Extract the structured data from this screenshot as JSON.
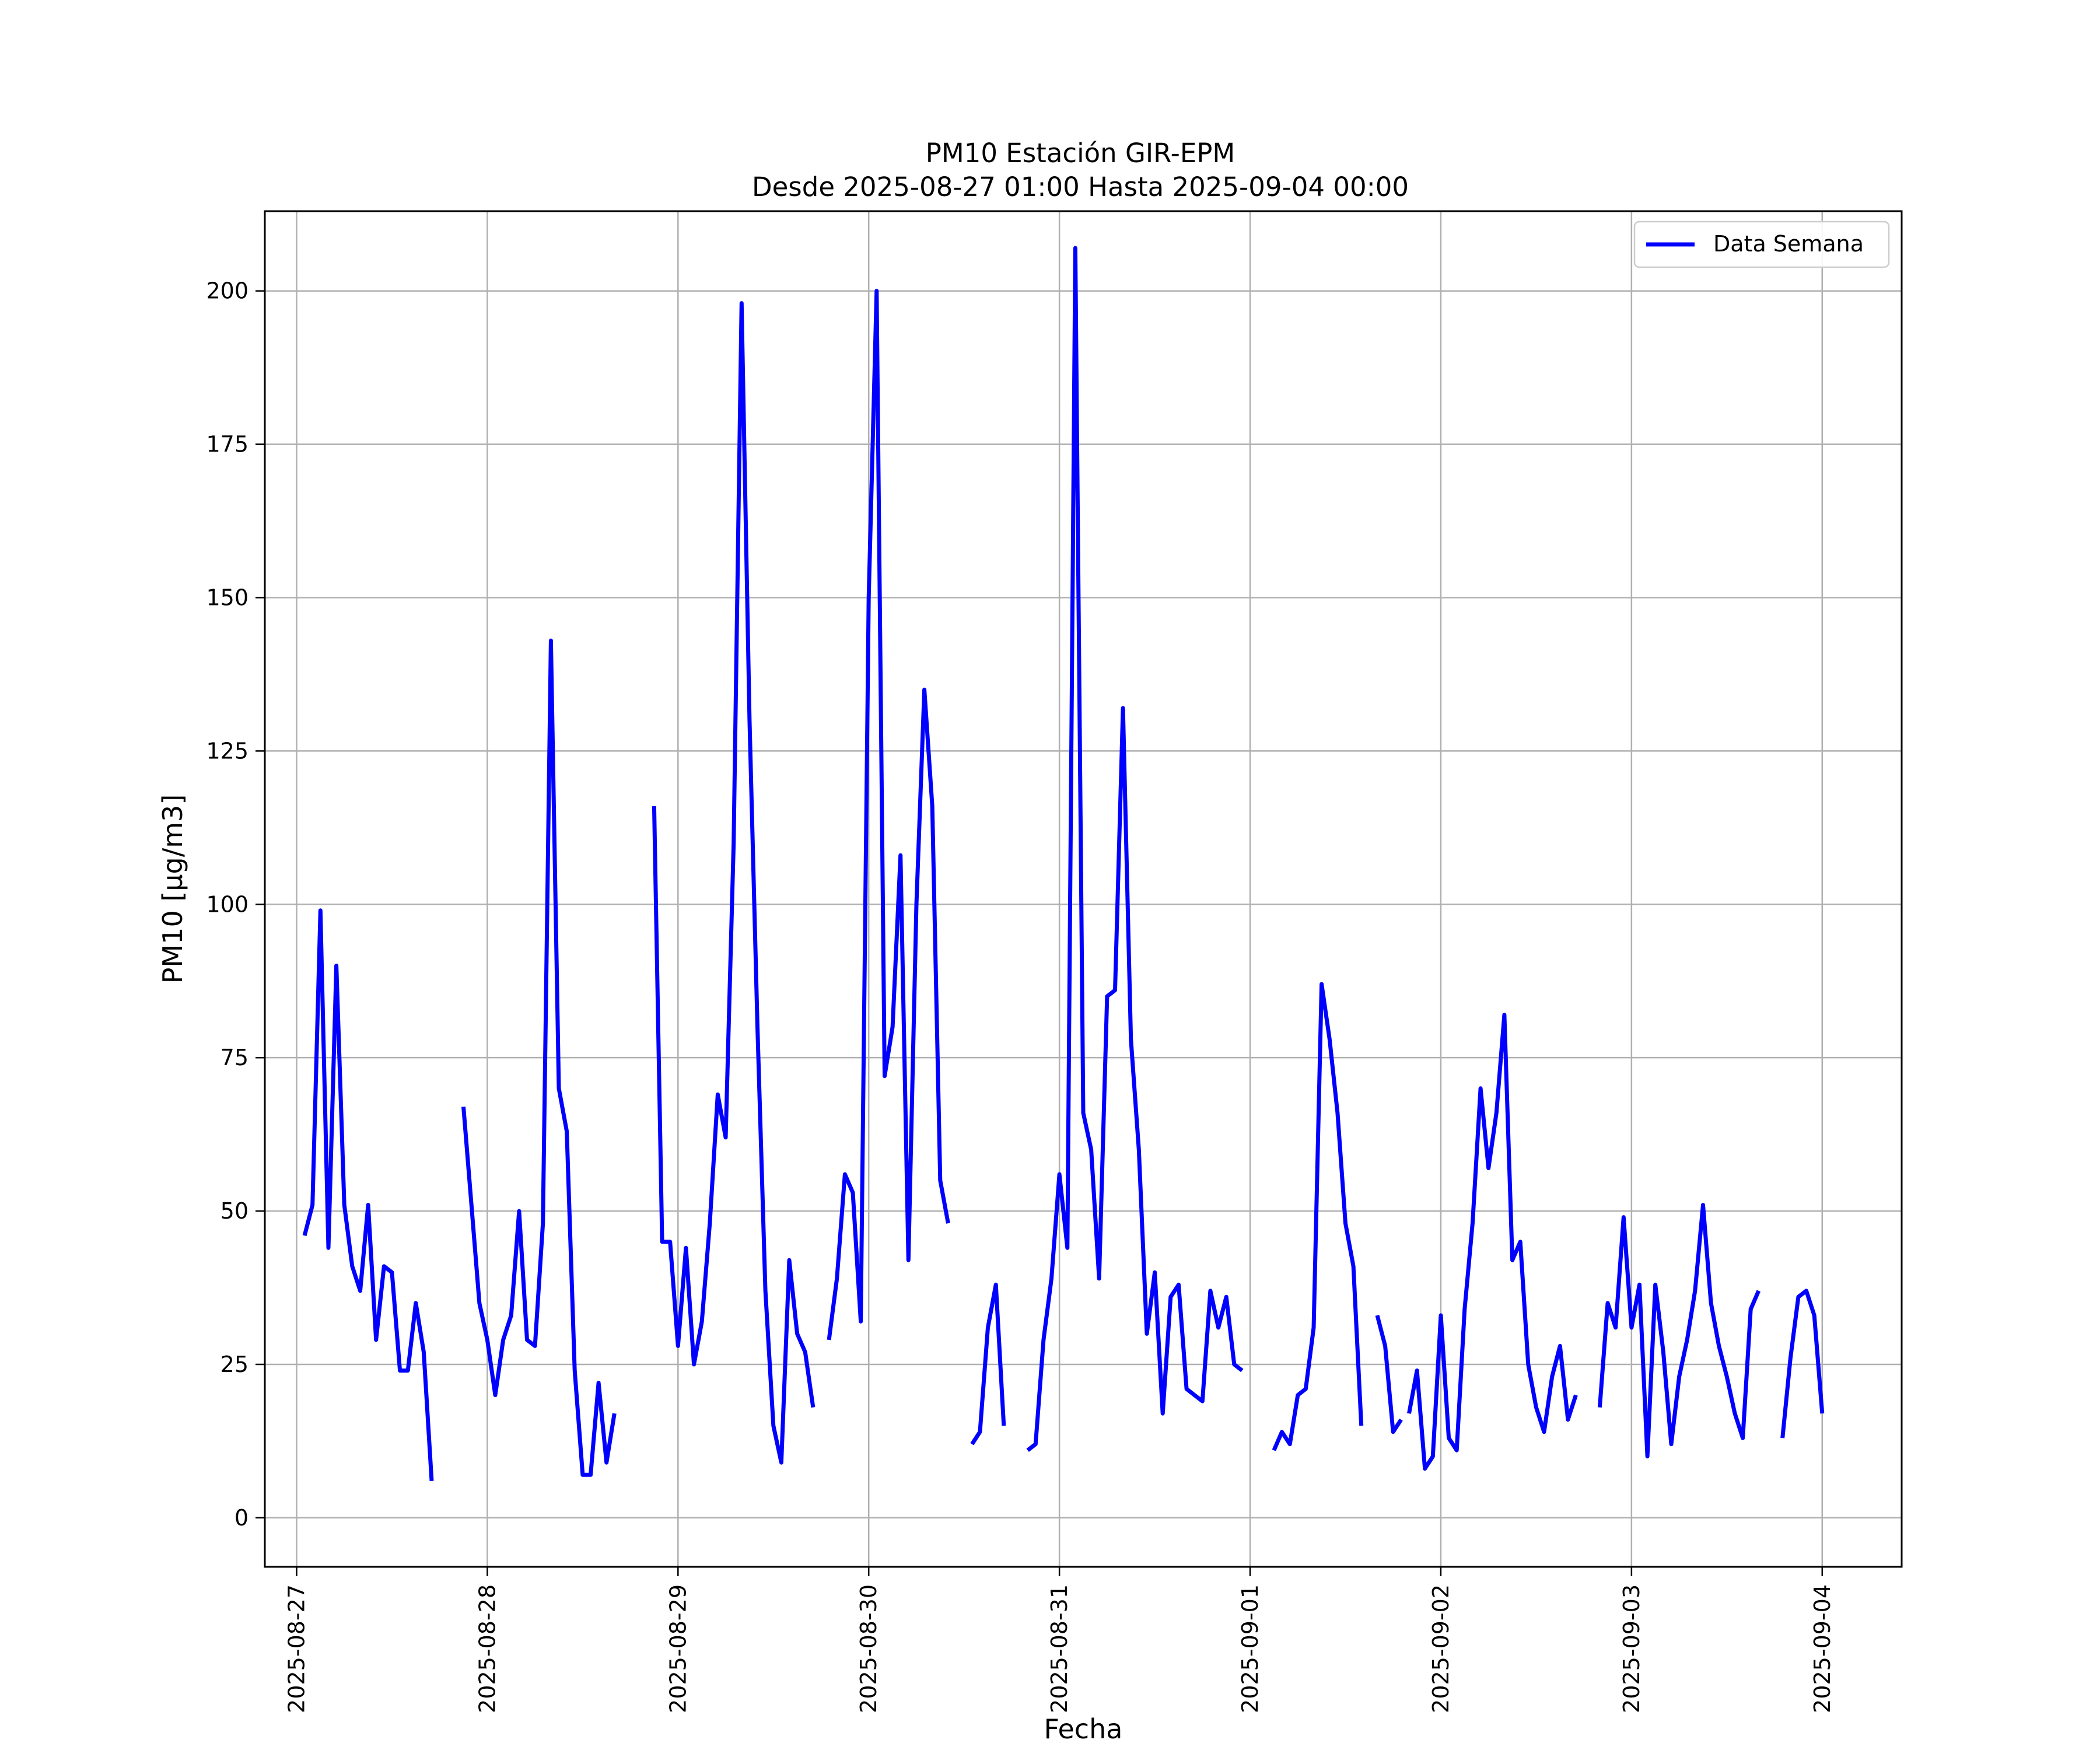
{
  "chart_data": {
    "type": "line",
    "title": "PM10 Estación GIR-EPM",
    "subtitle": "Desde 2025-08-27 01:00 Hasta 2025-09-04 00:00",
    "xlabel": "Fecha",
    "ylabel": "PM10 [μg/m3]",
    "xlim": [
      "2025-08-26 20:00",
      "2025-09-04 10:00"
    ],
    "ylim": [
      -8,
      213
    ],
    "grid": true,
    "legend_position": "top-right",
    "x_ticks": [
      "2025-08-27",
      "2025-08-28",
      "2025-08-29",
      "2025-08-30",
      "2025-08-31",
      "2025-09-01",
      "2025-09-02",
      "2025-09-03",
      "2025-09-04"
    ],
    "y_ticks": [
      0,
      25,
      50,
      75,
      100,
      125,
      150,
      175,
      200
    ],
    "series": [
      {
        "name": "Data Semana",
        "color": "#0000ff",
        "start": "2025-08-27 01:00",
        "interval_hours": 1,
        "values": [
          46,
          51,
          99,
          44,
          90,
          51,
          41,
          37,
          51,
          29,
          41,
          40,
          24,
          24,
          35,
          27,
          6,
          null,
          null,
          null,
          null,
          null,
          null,
          null,
          null,
          null,
          null,
          null,
          null,
          null,
          null,
          null,
          null,
          null,
          null,
          null,
          null,
          null,
          null,
          null,
          null,
          null,
          null,
          null,
          null,
          null,
          null,
          null,
          null,
          null,
          null,
          null,
          null,
          null,
          null,
          null,
          null,
          null,
          null,
          null,
          null,
          null,
          null,
          null,
          null,
          null,
          null,
          null,
          null,
          null,
          null,
          null,
          null,
          null,
          null,
          null,
          null,
          null,
          null,
          null,
          null,
          null,
          null,
          null,
          null,
          null,
          null,
          null,
          null,
          null,
          null,
          null,
          null,
          null,
          null,
          null,
          null,
          null,
          null,
          null,
          null,
          null,
          null,
          null,
          null,
          null,
          null,
          null,
          null,
          null,
          null,
          null,
          null,
          null,
          null,
          null,
          null,
          null,
          null,
          null,
          null,
          null,
          null,
          null,
          null,
          null,
          null,
          null,
          null,
          null,
          null,
          null,
          null,
          null,
          null,
          null,
          null,
          null,
          null,
          null,
          null,
          null,
          null,
          null,
          null,
          null,
          null,
          null,
          null,
          null,
          null,
          null,
          null,
          null,
          null,
          null,
          null,
          null,
          null,
          null,
          null,
          null,
          null,
          null,
          null,
          null,
          null,
          null,
          null,
          null,
          null,
          null,
          null,
          null,
          null,
          null,
          null,
          null,
          null,
          null,
          null,
          null,
          null,
          null,
          null,
          null,
          null,
          null,
          null,
          null,
          null,
          null,
          null,
          null
        ]
      }
    ],
    "segments": [
      {
        "start": "2025-08-27 01:00",
        "values": [
          46,
          51,
          99,
          44,
          90,
          51,
          41,
          37,
          51,
          29,
          41,
          40,
          24,
          24,
          35,
          27,
          6
        ]
      },
      {
        "start": "2025-08-27 21:00",
        "values": [
          67,
          51,
          35,
          29,
          20,
          29,
          33,
          50,
          29,
          28,
          48,
          143,
          70,
          63,
          24,
          7,
          7,
          22,
          9,
          17
        ]
      },
      {
        "start": "2025-08-28 21:00",
        "values": [
          116,
          45,
          45,
          28,
          44,
          25,
          32,
          48,
          69,
          62,
          110,
          198,
          130,
          80,
          37,
          15,
          9,
          42,
          30,
          27,
          18
        ]
      },
      {
        "start": "2025-08-29 19:00",
        "values": [
          29,
          39,
          56,
          53,
          32,
          150,
          200,
          72,
          80,
          108,
          42,
          100,
          135,
          116,
          55,
          48
        ]
      },
      {
        "start": "2025-08-30 13:00",
        "values": [
          12,
          14,
          31,
          38,
          15
        ]
      },
      {
        "start": "2025-08-30 20:00",
        "values": [
          11,
          12,
          29,
          39,
          56,
          44,
          207,
          66,
          60,
          39,
          85,
          86,
          132,
          78,
          60,
          30,
          40,
          17,
          36,
          38,
          21,
          20,
          19,
          37,
          31,
          36,
          25,
          24
        ]
      },
      {
        "start": "2025-09-01 03:00",
        "values": [
          11,
          14,
          12,
          20,
          21,
          31,
          87,
          78,
          66,
          48,
          41,
          15
        ]
      },
      {
        "start": "2025-09-01 16:00",
        "values": [
          33,
          28,
          14,
          16
        ]
      },
      {
        "start": "2025-09-01 20:00",
        "values": [
          17,
          24,
          8,
          10,
          33,
          13,
          11,
          34,
          48,
          70,
          57,
          66,
          82,
          42,
          45,
          25,
          18,
          14,
          23,
          28,
          16,
          20
        ]
      },
      {
        "start": "2025-09-02 20:00",
        "values": [
          18,
          35,
          31,
          49,
          31,
          38,
          10,
          38,
          27,
          12,
          23,
          29,
          37,
          51,
          35,
          28,
          23,
          17,
          13,
          34,
          37
        ]
      },
      {
        "start": "2025-09-03 19:00",
        "values": [
          13,
          26,
          36,
          37,
          33,
          17
        ]
      }
    ]
  }
}
